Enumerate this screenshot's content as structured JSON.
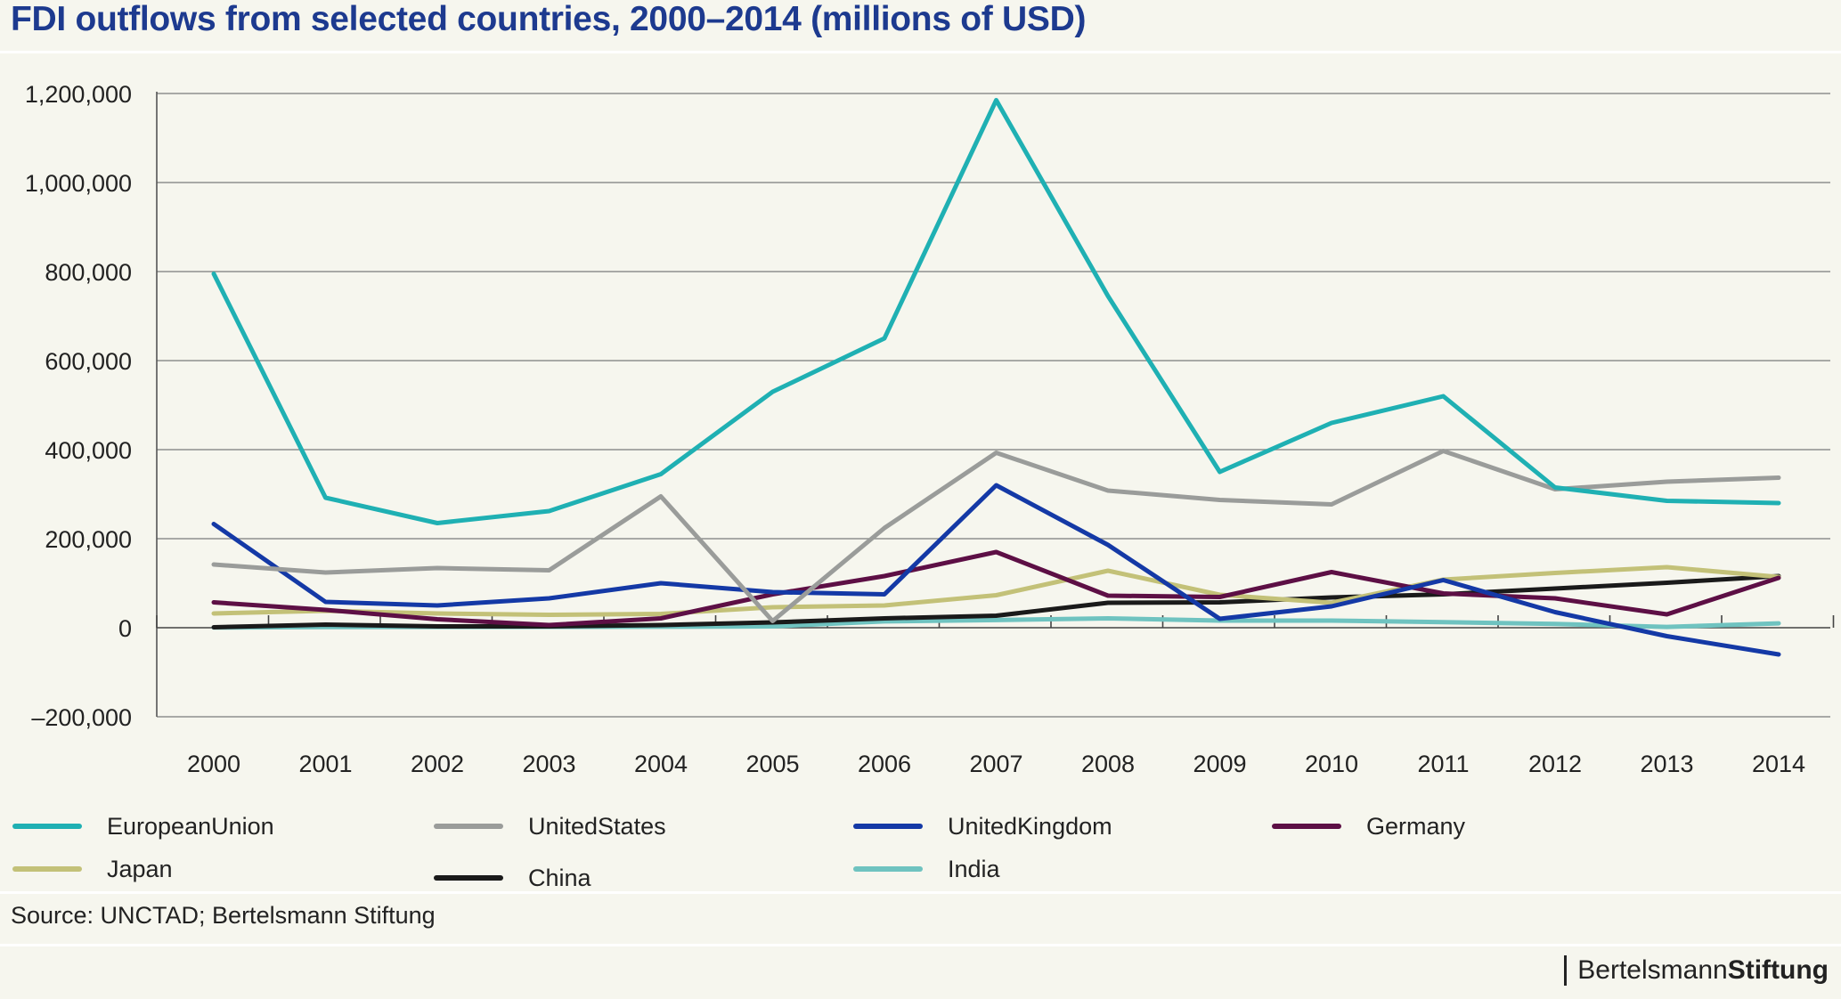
{
  "title": "FDI outflows from selected countries, 2000–2014 (millions of USD)",
  "source": "Source: UNCTAD; Bertelsmann Stiftung",
  "brand": {
    "part1": "Bertelsmann",
    "part2": "Stiftung"
  },
  "chart_data": {
    "type": "line",
    "title": "FDI outflows from selected countries, 2000–2014 (millions of USD)",
    "xlabel": "",
    "ylabel": "",
    "x": [
      2000,
      2001,
      2002,
      2003,
      2004,
      2005,
      2006,
      2007,
      2008,
      2009,
      2010,
      2011,
      2012,
      2013,
      2014
    ],
    "ylim": [
      -200000,
      1200000
    ],
    "yticks": [
      -200000,
      0,
      200000,
      400000,
      600000,
      800000,
      1000000,
      1200000
    ],
    "ytick_labels": [
      "–200,000",
      "0",
      "200,000",
      "400,000",
      "600,000",
      "800,000",
      "1,000,000",
      "1,200,000"
    ],
    "grid": true,
    "legend_position": "bottom",
    "series": [
      {
        "name": "EuropeanUnion",
        "color": "#1fb0b3",
        "values": [
          795000,
          292000,
          235000,
          262000,
          345000,
          530000,
          650000,
          1185000,
          745000,
          350000,
          460000,
          520000,
          315000,
          285000,
          280000
        ]
      },
      {
        "name": "UnitedStates",
        "color": "#9a9c9a",
        "values": [
          142000,
          124000,
          134000,
          129000,
          295000,
          15000,
          224000,
          393000,
          308000,
          287000,
          277000,
          397000,
          311000,
          328000,
          337000
        ]
      },
      {
        "name": "UnitedKingdom",
        "color": "#1439a6",
        "values": [
          233000,
          58000,
          50000,
          66000,
          100000,
          80000,
          75000,
          320000,
          186000,
          20000,
          48000,
          107000,
          35000,
          -19000,
          -60000
        ]
      },
      {
        "name": "Germany",
        "color": "#5d0f45",
        "values": [
          57000,
          40000,
          19000,
          6000,
          21000,
          75000,
          116000,
          170000,
          72000,
          69000,
          125000,
          77000,
          66000,
          30000,
          112000
        ]
      },
      {
        "name": "Japan",
        "color": "#c3c178",
        "values": [
          32000,
          38000,
          32000,
          29000,
          31000,
          46000,
          50000,
          73000,
          128000,
          74000,
          56000,
          108000,
          123000,
          136000,
          114000
        ]
      },
      {
        "name": "China",
        "color": "#1a1a1a",
        "values": [
          1000,
          7000,
          3000,
          3000,
          6000,
          12000,
          21000,
          27000,
          56000,
          57000,
          68000,
          75000,
          88000,
          101000,
          116000
        ]
      },
      {
        "name": "India",
        "color": "#6fc3c0",
        "values": [
          500,
          1400,
          1700,
          1900,
          2200,
          3000,
          14300,
          17200,
          21100,
          16000,
          15900,
          12500,
          8500,
          1700,
          9800
        ]
      }
    ]
  }
}
